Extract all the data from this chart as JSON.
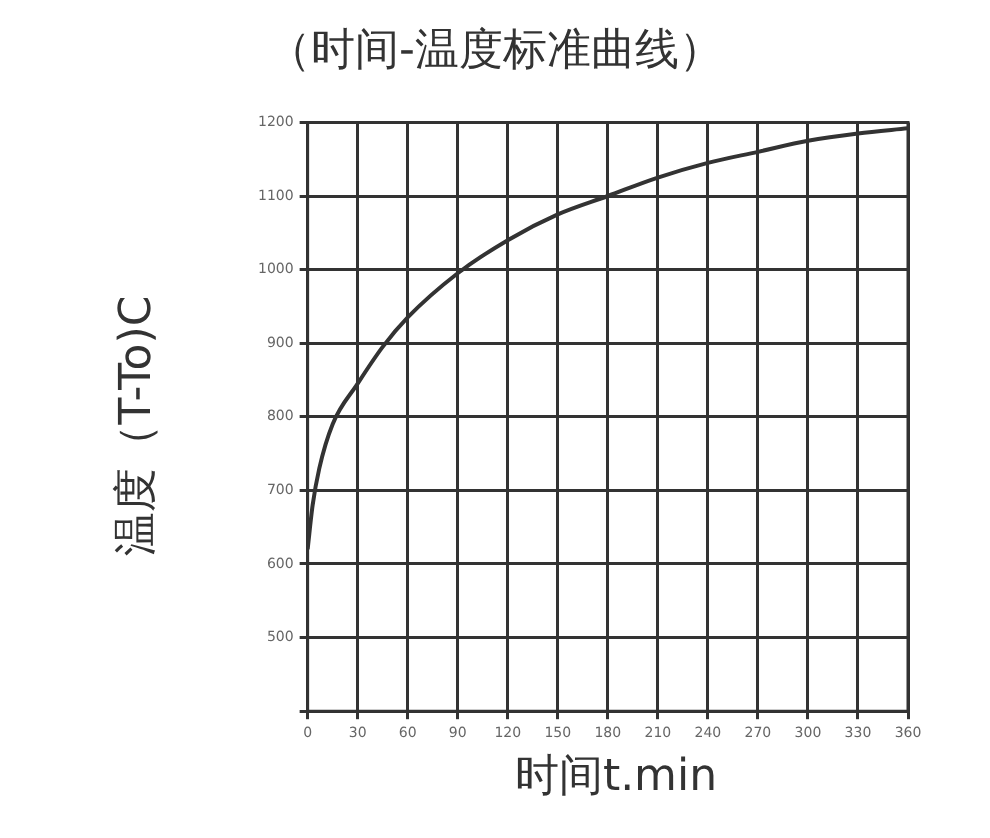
{
  "chart_data": {
    "type": "line",
    "title": "（时间-温度标准曲线）",
    "xlabel": "时间t.min",
    "ylabel": "温度（T-To)C",
    "x": [
      0,
      3,
      7,
      15,
      30,
      45,
      60,
      90,
      120,
      150,
      180,
      210,
      240,
      270,
      300,
      330,
      360
    ],
    "series": [
      {
        "color": "#333333",
        "values": [
          620,
          680,
          730,
          790,
          845,
          895,
          935,
          995,
          1040,
          1075,
          1100,
          1125,
          1145,
          1160,
          1175,
          1185,
          1192
        ]
      }
    ],
    "xlim": [
      0,
      360
    ],
    "xticks": [
      0,
      30,
      60,
      90,
      120,
      150,
      180,
      210,
      240,
      270,
      300,
      330,
      360
    ],
    "ylim": [
      400,
      1200
    ],
    "yticks": [
      {
        "value": 400,
        "label": null
      },
      500,
      600,
      700,
      800,
      900,
      1000,
      1100,
      1200
    ],
    "grid": true,
    "legend": false,
    "marker": "none",
    "line_style": "solid"
  }
}
